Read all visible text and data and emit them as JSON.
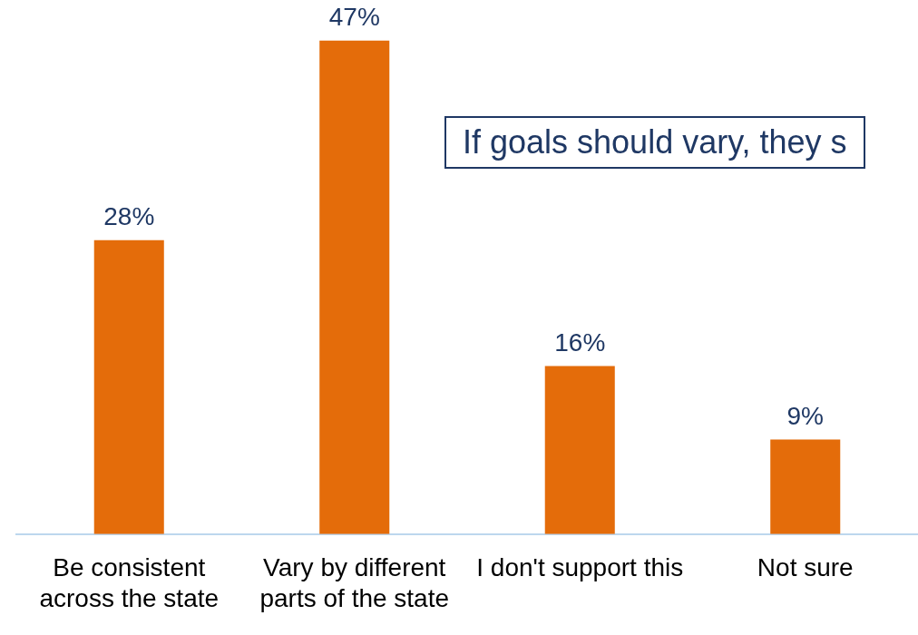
{
  "chart_data": {
    "type": "bar",
    "categories": [
      "Be consistent across the state",
      "Vary by different parts of the state",
      "I don't support this",
      "Not sure"
    ],
    "values": [
      28,
      47,
      16,
      9
    ],
    "value_labels": [
      "28%",
      "47%",
      "16%",
      "9%"
    ],
    "color": "#e46c0a",
    "annotations": [
      "If goals should vary, they s"
    ],
    "grid": false,
    "legend": false
  }
}
